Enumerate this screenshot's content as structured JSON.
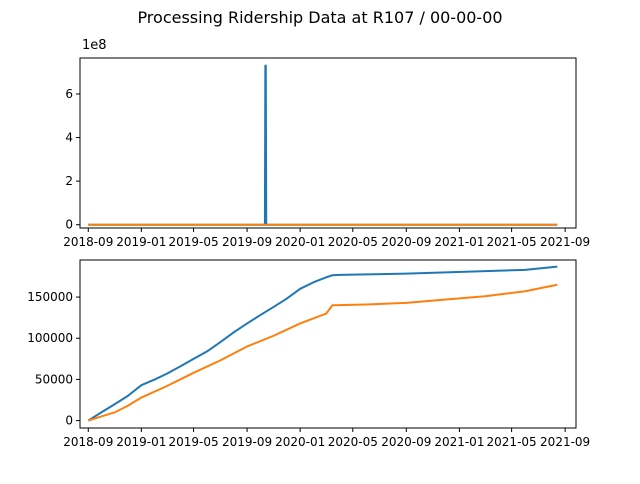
{
  "figure": {
    "title": "Processing Ridership Data at R107 / 00-00-00"
  },
  "chart_data": [
    {
      "type": "line",
      "title": "",
      "xlabel": "",
      "ylabel": "",
      "y_offset_label": "1e8",
      "xlim": [
        "2018-08-13",
        "2021-09-26"
      ],
      "ylim": [
        -15000000,
        765000000
      ],
      "x_ticks": [
        "2018-09",
        "2019-01",
        "2019-05",
        "2019-09",
        "2020-01",
        "2020-05",
        "2020-09",
        "2021-01",
        "2021-05",
        "2021-09"
      ],
      "y_ticks": [
        {
          "value": 0,
          "label": "0"
        },
        {
          "value": 200000000,
          "label": "2"
        },
        {
          "value": 400000000,
          "label": "4"
        },
        {
          "value": 600000000,
          "label": "6"
        }
      ],
      "grid": false,
      "series": [
        {
          "color": "#1f77b4",
          "x": [
            "2018-09-01",
            "2019-10-12",
            "2019-10-13",
            "2019-10-14",
            "2019-10-15",
            "2021-08-14"
          ],
          "y": [
            0,
            0,
            730000000,
            730000000,
            0,
            0
          ]
        },
        {
          "color": "#ff7f0e",
          "x": [
            "2018-09-01",
            "2021-08-14"
          ],
          "y": [
            0,
            0
          ]
        }
      ]
    },
    {
      "type": "line",
      "title": "",
      "xlabel": "",
      "ylabel": "",
      "xlim": [
        "2018-08-13",
        "2021-09-26"
      ],
      "ylim": [
        -9000,
        195000
      ],
      "x_ticks": [
        "2018-09",
        "2019-01",
        "2019-05",
        "2019-09",
        "2020-01",
        "2020-05",
        "2020-09",
        "2021-01",
        "2021-05",
        "2021-09"
      ],
      "y_ticks": [
        {
          "value": 0,
          "label": "0"
        },
        {
          "value": 50000,
          "label": "50000"
        },
        {
          "value": 100000,
          "label": "100000"
        },
        {
          "value": 150000,
          "label": "150000"
        }
      ],
      "grid": false,
      "series": [
        {
          "color": "#1f77b4",
          "x": [
            "2018-09-01",
            "2018-10-01",
            "2018-11-01",
            "2018-12-01",
            "2019-01-01",
            "2019-02-01",
            "2019-03-01",
            "2019-04-01",
            "2019-05-01",
            "2019-06-01",
            "2019-07-01",
            "2019-08-01",
            "2019-09-01",
            "2019-10-01",
            "2019-11-01",
            "2019-12-01",
            "2020-01-01",
            "2020-02-01",
            "2020-03-01",
            "2020-03-15",
            "2020-04-01",
            "2020-06-01",
            "2020-09-01",
            "2020-12-01",
            "2021-03-01",
            "2021-06-01",
            "2021-08-14"
          ],
          "y": [
            0,
            10000,
            20000,
            30000,
            43000,
            50000,
            57000,
            66000,
            75000,
            84000,
            95000,
            107000,
            118000,
            128000,
            138000,
            148000,
            160000,
            168000,
            174000,
            176500,
            177000,
            177500,
            178500,
            180000,
            181500,
            183000,
            187000
          ]
        },
        {
          "color": "#ff7f0e",
          "x": [
            "2018-09-01",
            "2018-10-01",
            "2018-11-01",
            "2018-12-01",
            "2019-01-01",
            "2019-03-01",
            "2019-05-01",
            "2019-07-01",
            "2019-09-01",
            "2019-11-01",
            "2020-01-01",
            "2020-03-01",
            "2020-03-15",
            "2020-06-01",
            "2020-09-01",
            "2020-12-01",
            "2021-03-01",
            "2021-06-01",
            "2021-08-14"
          ],
          "y": [
            0,
            5000,
            10000,
            18000,
            28000,
            42000,
            58000,
            73000,
            90000,
            103000,
            118000,
            130000,
            140000,
            141000,
            143000,
            147000,
            151000,
            157000,
            165000
          ]
        }
      ]
    }
  ]
}
